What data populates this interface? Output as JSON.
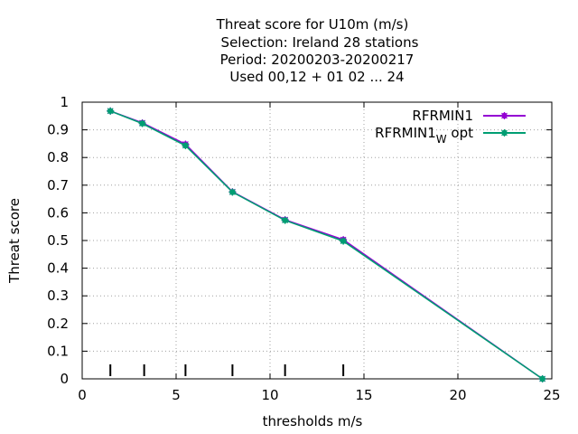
{
  "chart_data": {
    "type": "line",
    "title_lines": [
      "Threat score  for U10m (m/s)",
      "Selection: Ireland     28 stations",
      "Period: 20200203-20200217",
      "Used  00,12  + 01 02 ... 24"
    ],
    "xlabel": "thresholds m/s",
    "ylabel": "Threat score",
    "xlim": [
      0,
      25
    ],
    "ylim": [
      0,
      1
    ],
    "xticks": [
      0,
      5,
      10,
      15,
      20,
      25
    ],
    "xtick_labels": [
      "0",
      "5",
      "10",
      "15",
      "20",
      "25"
    ],
    "yticks": [
      0,
      0.1,
      0.2,
      0.3,
      0.4,
      0.5,
      0.6,
      0.7,
      0.8,
      0.9,
      1
    ],
    "ytick_labels": [
      "0",
      "0.1",
      "0.2",
      "0.3",
      "0.4",
      "0.5",
      "0.6",
      "0.7",
      "0.8",
      "0.9",
      "1"
    ],
    "grid": true,
    "legend_position": "top-right",
    "threshold_markers": [
      1.5,
      3.3,
      5.5,
      8,
      10.8,
      13.9
    ],
    "series": [
      {
        "name": "RFRMIN1",
        "color": "#9400d3",
        "x": [
          1.5,
          3.2,
          5.5,
          8.0,
          10.8,
          13.9,
          24.5
        ],
        "y": [
          0.968,
          0.925,
          0.848,
          0.676,
          0.575,
          0.503,
          0.0
        ]
      },
      {
        "name": "RFRMIN1",
        "name_subscript": "W",
        "name_suffix": " opt",
        "color": "#009e73",
        "x": [
          1.5,
          3.2,
          5.5,
          8.0,
          10.8,
          13.9,
          24.5
        ],
        "y": [
          0.968,
          0.923,
          0.843,
          0.675,
          0.573,
          0.498,
          0.0
        ]
      }
    ]
  }
}
